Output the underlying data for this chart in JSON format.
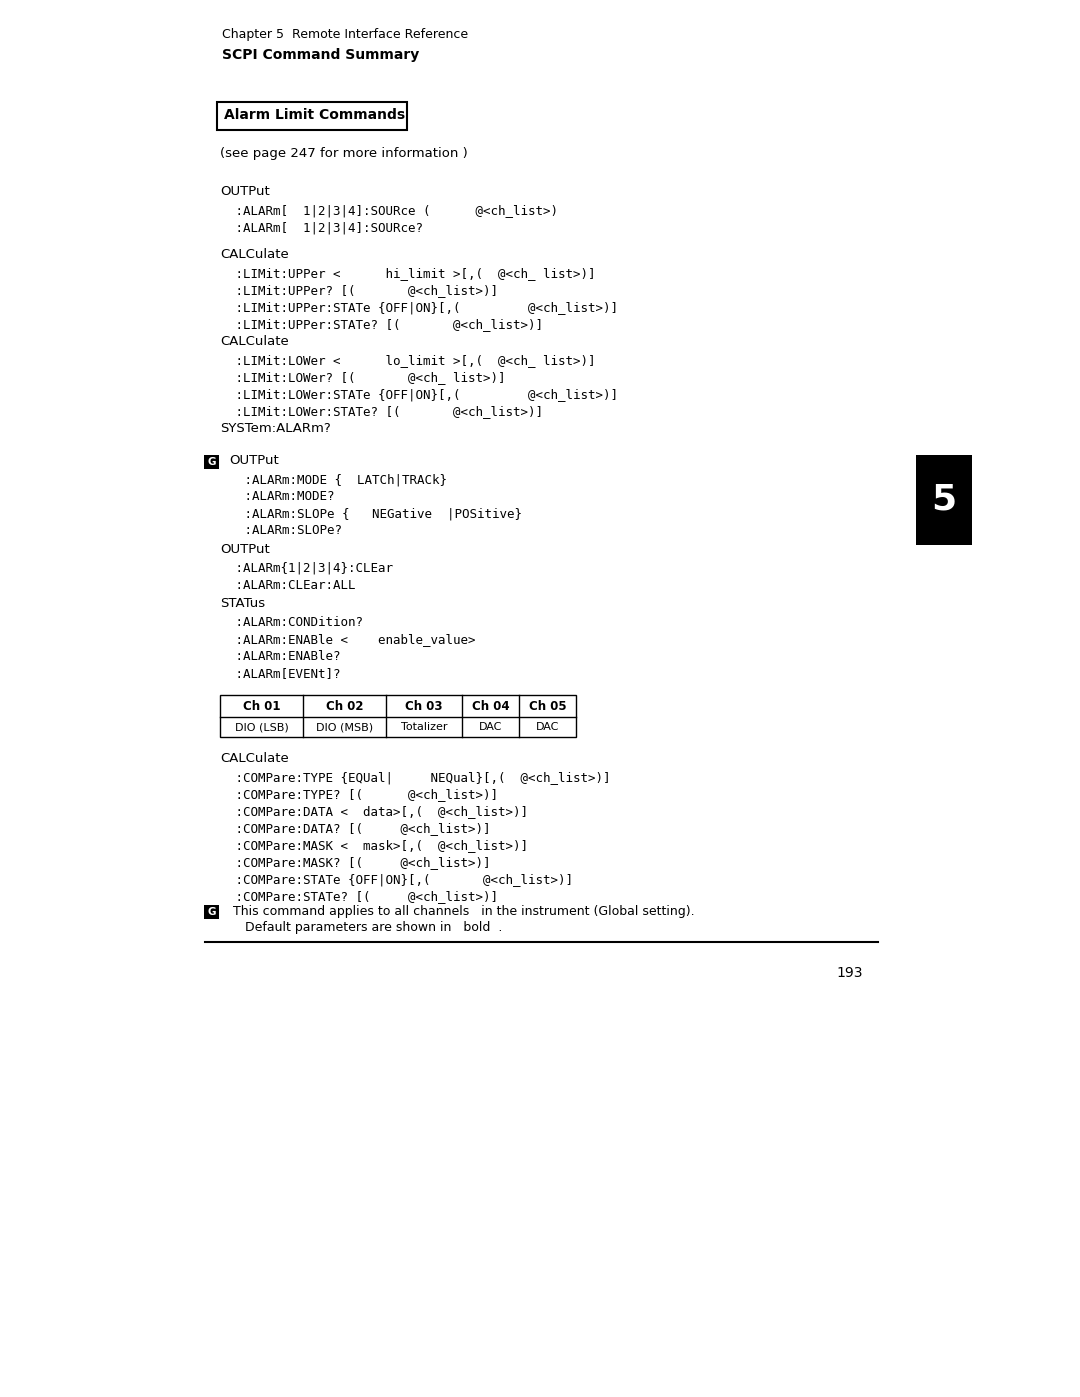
{
  "bg_color": "#ffffff",
  "page_width": 10.8,
  "page_height": 13.97,
  "dpi": 100,
  "header_line1": "Chapter 5  Remote Interface Reference",
  "header_line2": "SCPI Command Summary",
  "box_title": "Alarm Limit Commands",
  "see_page": "(see page 247 for more information )",
  "section1_head": "OUTPut",
  "section1_lines": [
    " :ALARm[  1|2|3|4]:SOURce (      @<ch_list>)",
    " :ALARm[  1|2|3|4]:SOURce?"
  ],
  "section2_head": "CALCulate",
  "section2_lines": [
    " :LIMit:UPPer <      hi_limit >[,(  @<ch_ list>)]",
    " :LIMit:UPPer? [(       @<ch_list>)]",
    " :LIMit:UPPer:STATe {OFF|ON}[,(         @<ch_list>)]",
    " :LIMit:UPPer:STATe? [(       @<ch_list>)]"
  ],
  "section3_head": "CALCulate",
  "section3_lines": [
    " :LIMit:LOWer <      lo_limit >[,(  @<ch_ list>)]",
    " :LIMit:LOWer? [(       @<ch_ list>)]",
    " :LIMit:LOWer:STATe {OFF|ON}[,(         @<ch_list>)]",
    " :LIMit:LOWer:STATe? [(       @<ch_list>)]"
  ],
  "section4_head": "SYSTem:ALARm?",
  "section5_head": "OUTPut",
  "section5_lines": [
    " :ALARm:MODE {  LATCh|TRACk}",
    " :ALARm:MODE?",
    " :ALARm:SLOPe {   NEGative  |POSitive}",
    " :ALARm:SLOPe?"
  ],
  "section6_head": "OUTPut",
  "section6_lines": [
    " :ALARm{1|2|3|4}:CLEar",
    " :ALARm:CLEar:ALL"
  ],
  "section7_head": "STATus",
  "section7_lines": [
    " :ALARm:CONDition?",
    " :ALARm:ENABle <    enable_value>",
    " :ALARm:ENABle?",
    " :ALARm[EVENt]?"
  ],
  "table_headers": [
    "Ch 01",
    "Ch 02",
    "Ch 03",
    "Ch 04",
    "Ch 05"
  ],
  "table_values": [
    "DIO (LSB)",
    "DIO (MSB)",
    "Totalizer",
    "DAC",
    "DAC"
  ],
  "section8_head": "CALCulate",
  "section8_lines": [
    " :COMPare:TYPE {EQUal|     NEQual}[,(  @<ch_list>)]",
    " :COMPare:TYPE? [(      @<ch_list>)]",
    " :COMPare:DATA <  data>[,(  @<ch_list>)]",
    " :COMPare:DATA? [(     @<ch_list>)]",
    " :COMPare:MASK <  mask>[,(  @<ch_list>)]",
    " :COMPare:MASK? [(     @<ch_list>)]",
    " :COMPare:STATe {OFF|ON}[,(       @<ch_list>)]",
    " :COMPare:STATe? [(     @<ch_list>)]"
  ],
  "fn_line1": " This command applies to all channels   in the instrument (Global setting).",
  "fn_line2": "    Default parameters are shown in   bold  .",
  "page_number": "193",
  "tab_number": "5"
}
